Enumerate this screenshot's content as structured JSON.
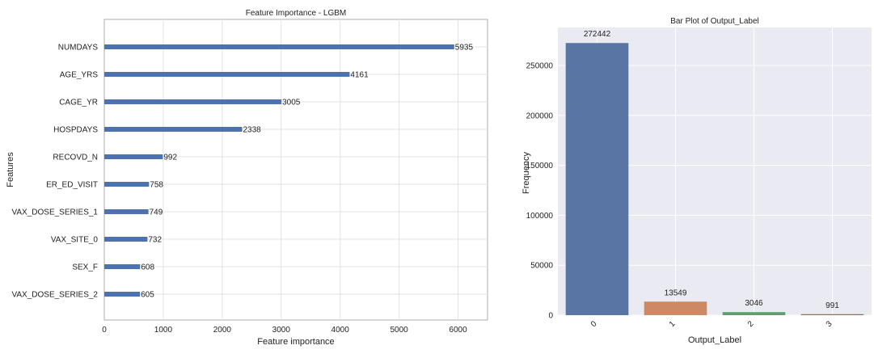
{
  "chart_data": [
    {
      "type": "bar",
      "orientation": "horizontal",
      "title": "Feature Importance - LGBM",
      "xlabel": "Feature importance",
      "ylabel": "Features",
      "categories": [
        "NUMDAYS",
        "AGE_YRS",
        "CAGE_YR",
        "HOSPDAYS",
        "RECOVD_N",
        "ER_ED_VISIT",
        "VAX_DOSE_SERIES_1",
        "VAX_SITE_0",
        "SEX_F",
        "VAX_DOSE_SERIES_2"
      ],
      "values": [
        5935,
        4161,
        3005,
        2338,
        992,
        758,
        749,
        732,
        608,
        605
      ],
      "data_labels": [
        "5935",
        "4161",
        "3005",
        "2338",
        "992",
        "758",
        "749",
        "732",
        "608",
        "605"
      ],
      "xlim": [
        0,
        6500
      ],
      "xticks": [
        0,
        1000,
        2000,
        3000,
        4000,
        5000,
        6000
      ],
      "xtick_labels": [
        "0",
        "1000",
        "2000",
        "3000",
        "4000",
        "5000",
        "6000"
      ],
      "grid": true,
      "bar_color": "#4c72b0"
    },
    {
      "type": "bar",
      "orientation": "vertical",
      "title": "Bar Plot of Output_Label",
      "xlabel": "Output_Label",
      "ylabel": "Frequency",
      "categories": [
        "0",
        "1",
        "2",
        "3"
      ],
      "values": [
        272442,
        13549,
        3046,
        991
      ],
      "data_labels": [
        "272442",
        "13549",
        "3046",
        "991"
      ],
      "ylim": [
        0,
        288000
      ],
      "yticks": [
        0,
        50000,
        100000,
        150000,
        200000,
        250000
      ],
      "ytick_labels": [
        "0",
        "50000",
        "100000",
        "150000",
        "200000",
        "250000"
      ],
      "grid": true,
      "background": "#eaeaf2",
      "bar_colors": [
        "#5875a4",
        "#cc8963",
        "#5f9e6e",
        "#b55d60"
      ]
    }
  ]
}
